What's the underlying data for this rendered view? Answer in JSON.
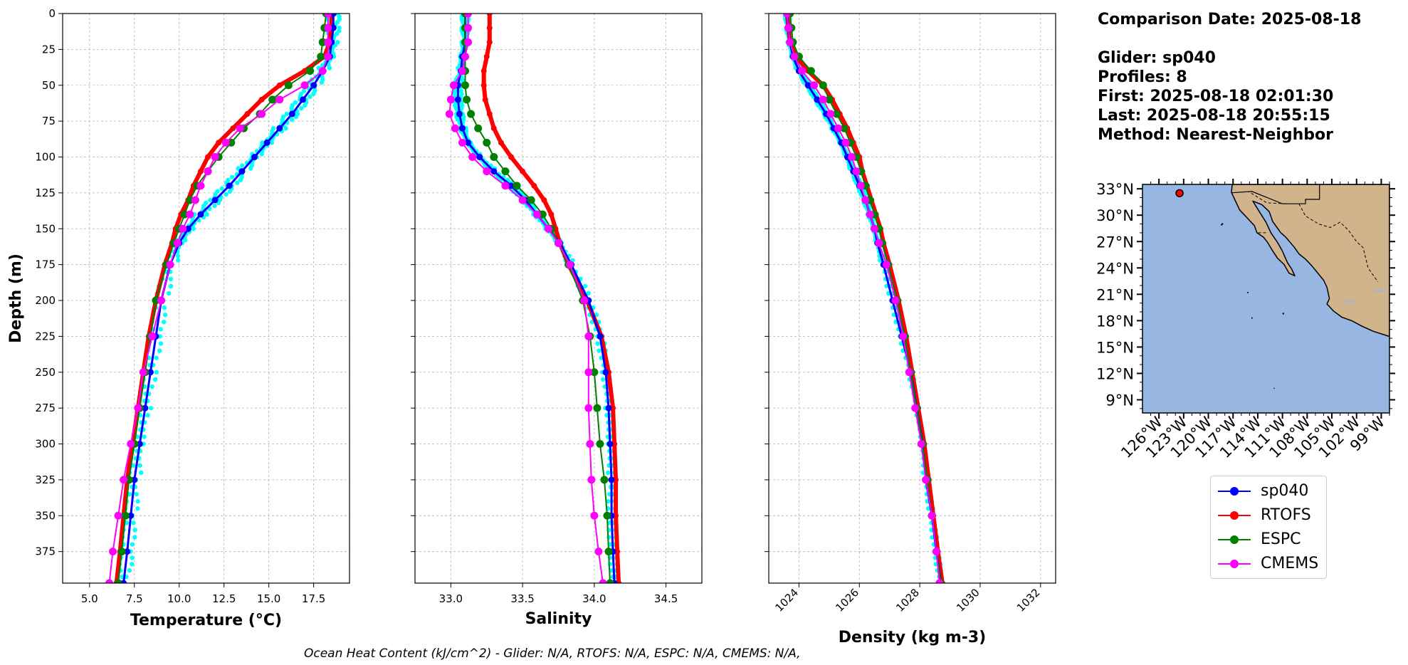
{
  "info": {
    "comparison_date": "Comparison Date: 2025-08-18",
    "glider": "Glider: sp040",
    "profiles": "Profiles: 8",
    "first": "First: 2025-08-18 02:01:30",
    "last": "Last: 2025-08-18 20:55:15",
    "method": "Method: Nearest-Neighbor"
  },
  "footer": "Ocean Heat Content (kJ/cm^2) - Glider: N/A,  RTOFS: N/A,  ESPC: N/A,  CMEMS: N/A,",
  "colors": {
    "glider": "#0000ff",
    "glider_raw": "#00ffff",
    "rtofs": "#ff0000",
    "espc": "#008000",
    "cmems": "#ff00ff",
    "ocean": "#97b6e1",
    "land": "#d2b48c",
    "grid": "#b0b0b0"
  },
  "legend": [
    {
      "label": "sp040",
      "color": "#0000ff"
    },
    {
      "label": "RTOFS",
      "color": "#ff0000"
    },
    {
      "label": "ESPC",
      "color": "#008000"
    },
    {
      "label": "CMEMS",
      "color": "#ff00ff"
    }
  ],
  "chart_data": [
    {
      "type": "line",
      "xlabel": "Temperature ($^oC$)",
      "xlabel_display": "Temperature (°C)",
      "ylabel": "Depth (m)",
      "xlim": [
        3.5,
        19.5
      ],
      "ylim": [
        397,
        0
      ],
      "xticks": [
        "5.0",
        "7.5",
        "10.0",
        "12.5",
        "15.0",
        "17.5"
      ],
      "yticks": [
        "0",
        "25",
        "50",
        "75",
        "100",
        "125",
        "150",
        "175",
        "200",
        "225",
        "250",
        "275",
        "300",
        "325",
        "350",
        "375"
      ],
      "grid": true,
      "depth": [
        0,
        10,
        20,
        30,
        40,
        50,
        60,
        70,
        80,
        90,
        100,
        110,
        120,
        130,
        140,
        150,
        160,
        175,
        200,
        225,
        250,
        275,
        300,
        325,
        350,
        375,
        397
      ],
      "series": [
        {
          "name": "sp040",
          "values": [
            18.6,
            18.6,
            18.5,
            18.4,
            18.0,
            17.5,
            16.9,
            16.3,
            15.6,
            14.9,
            14.2,
            13.5,
            12.8,
            12.0,
            11.2,
            10.5,
            10.0,
            9.5,
            9.0,
            8.7,
            8.4,
            8.1,
            7.8,
            7.5,
            7.3,
            7.1,
            6.9
          ]
        },
        {
          "name": "RTOFS",
          "values": [
            18.5,
            18.5,
            18.4,
            18.1,
            17.0,
            15.6,
            14.6,
            13.8,
            13.0,
            12.2,
            11.6,
            11.2,
            10.8,
            10.5,
            10.1,
            9.8,
            9.6,
            9.2,
            8.7,
            8.3,
            8.0,
            7.7,
            7.4,
            7.1,
            6.9,
            6.7,
            6.5
          ]
        },
        {
          "name": "ESPC",
          "values": [
            18.2,
            18.1,
            18.0,
            17.9,
            17.3,
            16.1,
            15.2,
            14.5,
            13.6,
            12.9,
            12.2,
            11.6,
            11.0,
            10.6,
            10.3,
            10.0,
            9.7,
            9.3,
            8.7,
            8.4,
            8.1,
            7.8,
            7.5,
            7.2,
            7.0,
            6.8,
            6.6
          ]
        },
        {
          "name": "CMEMS",
          "values": [
            18.3,
            18.3,
            18.3,
            18.3,
            18.0,
            17.0,
            15.6,
            14.6,
            13.4,
            12.6,
            12.0,
            11.6,
            11.2,
            10.9,
            10.6,
            10.2,
            9.9,
            9.5,
            9.0,
            8.5,
            8.0,
            7.7,
            7.3,
            6.9,
            6.6,
            6.3,
            6.1
          ]
        }
      ]
    },
    {
      "type": "line",
      "xlabel": "Salinity",
      "xlim": [
        32.75,
        34.75
      ],
      "ylim": [
        397,
        0
      ],
      "xticks": [
        "33.0",
        "33.5",
        "34.0",
        "34.5"
      ],
      "grid": true,
      "depth": [
        0,
        10,
        20,
        30,
        40,
        50,
        60,
        70,
        80,
        90,
        100,
        110,
        120,
        130,
        140,
        150,
        160,
        175,
        200,
        225,
        250,
        275,
        300,
        325,
        350,
        375,
        397
      ],
      "series": [
        {
          "name": "sp040",
          "values": [
            33.1,
            33.1,
            33.1,
            33.08,
            33.07,
            33.05,
            33.05,
            33.06,
            33.08,
            33.12,
            33.2,
            33.3,
            33.42,
            33.52,
            33.6,
            33.68,
            33.76,
            33.84,
            33.96,
            34.04,
            34.08,
            34.1,
            34.11,
            34.12,
            34.12,
            34.13,
            34.14
          ]
        },
        {
          "name": "RTOFS",
          "values": [
            33.27,
            33.27,
            33.27,
            33.25,
            33.23,
            33.23,
            33.24,
            33.27,
            33.3,
            33.35,
            33.42,
            33.5,
            33.58,
            33.65,
            33.7,
            33.73,
            33.76,
            33.82,
            33.95,
            34.05,
            34.1,
            34.13,
            34.14,
            34.15,
            34.15,
            34.16,
            34.17
          ]
        },
        {
          "name": "ESPC",
          "values": [
            33.1,
            33.1,
            33.1,
            33.1,
            33.1,
            33.1,
            33.11,
            33.14,
            33.19,
            33.25,
            33.3,
            33.38,
            33.46,
            33.56,
            33.64,
            33.7,
            33.75,
            33.82,
            33.92,
            33.97,
            34.0,
            34.02,
            34.04,
            34.07,
            34.09,
            34.1,
            34.11
          ]
        },
        {
          "name": "CMEMS",
          "values": [
            33.12,
            33.12,
            33.12,
            33.1,
            33.08,
            33.02,
            33.0,
            32.99,
            33.03,
            33.08,
            33.15,
            33.25,
            33.38,
            33.5,
            33.6,
            33.68,
            33.75,
            33.83,
            33.93,
            33.96,
            33.96,
            33.96,
            33.97,
            33.98,
            34.0,
            34.03,
            34.06
          ]
        }
      ]
    },
    {
      "type": "line",
      "xlabel": "Density (kg m-3)",
      "xlim": [
        1023,
        1032.5
      ],
      "ylim": [
        397,
        0
      ],
      "xticks": [
        "1024",
        "1026",
        "1028",
        "1030",
        "1032"
      ],
      "grid": true,
      "depth": [
        0,
        10,
        20,
        30,
        40,
        50,
        60,
        70,
        80,
        90,
        100,
        110,
        120,
        130,
        140,
        150,
        160,
        175,
        200,
        225,
        250,
        275,
        300,
        325,
        350,
        375,
        397
      ],
      "series": [
        {
          "name": "sp040",
          "values": [
            1023.6,
            1023.65,
            1023.7,
            1023.8,
            1024.0,
            1024.3,
            1024.6,
            1024.9,
            1025.15,
            1025.4,
            1025.6,
            1025.8,
            1026.0,
            1026.2,
            1026.35,
            1026.5,
            1026.6,
            1026.8,
            1027.1,
            1027.4,
            1027.7,
            1027.9,
            1028.1,
            1028.2,
            1028.4,
            1028.55,
            1028.7
          ]
        },
        {
          "name": "RTOFS",
          "values": [
            1023.6,
            1023.65,
            1023.7,
            1023.9,
            1024.3,
            1024.8,
            1025.1,
            1025.35,
            1025.6,
            1025.8,
            1026.0,
            1026.1,
            1026.25,
            1026.4,
            1026.55,
            1026.7,
            1026.8,
            1027.0,
            1027.3,
            1027.55,
            1027.75,
            1027.95,
            1028.15,
            1028.3,
            1028.45,
            1028.6,
            1028.75
          ]
        },
        {
          "name": "ESPC",
          "values": [
            1023.7,
            1023.75,
            1023.8,
            1024.0,
            1024.4,
            1024.8,
            1025.0,
            1025.25,
            1025.5,
            1025.7,
            1025.9,
            1026.05,
            1026.2,
            1026.35,
            1026.5,
            1026.65,
            1026.75,
            1026.95,
            1027.25,
            1027.5,
            1027.7,
            1027.9,
            1028.1,
            1028.25,
            1028.4,
            1028.55,
            1028.7
          ]
        },
        {
          "name": "CMEMS",
          "values": [
            1023.6,
            1023.65,
            1023.7,
            1023.85,
            1024.1,
            1024.5,
            1024.8,
            1025.05,
            1025.3,
            1025.55,
            1025.75,
            1025.9,
            1026.05,
            1026.2,
            1026.35,
            1026.5,
            1026.65,
            1026.9,
            1027.2,
            1027.45,
            1027.65,
            1027.85,
            1028.05,
            1028.2,
            1028.4,
            1028.55,
            1028.65
          ]
        }
      ]
    }
  ],
  "map": {
    "lon_range": [
      -128,
      -98
    ],
    "lat_range": [
      7.5,
      33.5
    ],
    "lat_ticks": [
      "33°N",
      "30°N",
      "27°N",
      "24°N",
      "21°N",
      "18°N",
      "15°N",
      "12°N",
      "9°N"
    ],
    "lon_ticks": [
      "126°W",
      "123°W",
      "120°W",
      "117°W",
      "114°W",
      "111°W",
      "108°W",
      "105°W",
      "102°W",
      "99°W"
    ],
    "glider_position": {
      "lon": -123.5,
      "lat": 32.5
    }
  }
}
